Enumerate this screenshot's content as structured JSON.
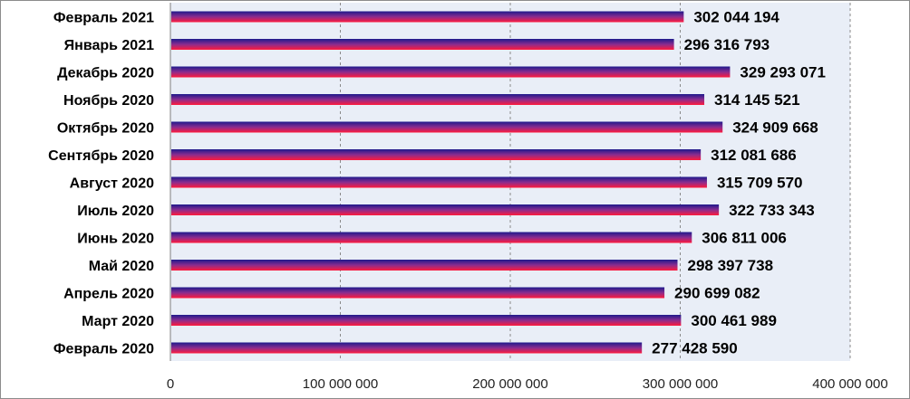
{
  "chart_data": {
    "type": "bar",
    "orientation": "horizontal",
    "title": "",
    "xlabel": "",
    "ylabel": "",
    "categories": [
      "Февраль 2021",
      "Январь 2021",
      "Декабрь 2020",
      "Ноябрь 2020",
      "Октябрь 2020",
      "Сентябрь 2020",
      "Август 2020",
      "Июль 2020",
      "Июнь 2020",
      "Май 2020",
      "Апрель 2020",
      "Март 2020",
      "Февраль 2020"
    ],
    "values": [
      302044194,
      296316793,
      329293071,
      314145521,
      324909668,
      312081686,
      315709570,
      322733343,
      306811006,
      298397738,
      290699082,
      300461989,
      277428590
    ],
    "value_labels": [
      "302 044 194",
      "296 316 793",
      "329 293 071",
      "314 145 521",
      "324 909 668",
      "312 081 686",
      "315 709 570",
      "322 733 343",
      "306 811 006",
      "298 397 738",
      "290 699 082",
      "300 461 989",
      "277 428 590"
    ],
    "xlim": [
      0,
      400000000
    ],
    "x_ticks": [
      0,
      100000000,
      200000000,
      300000000,
      400000000
    ],
    "x_tick_labels": [
      "0",
      "100 000 000",
      "200 000 000",
      "300 000 000",
      "400 000 000"
    ],
    "grid": true,
    "legend": "none",
    "colors": {
      "plot_background": "#e9eef7",
      "gridline": "#8a8a8a",
      "bar_top": "#1e1a8c",
      "bar_mid": "#8a2c8f",
      "bar_bottom": "#ff1a3c"
    }
  }
}
